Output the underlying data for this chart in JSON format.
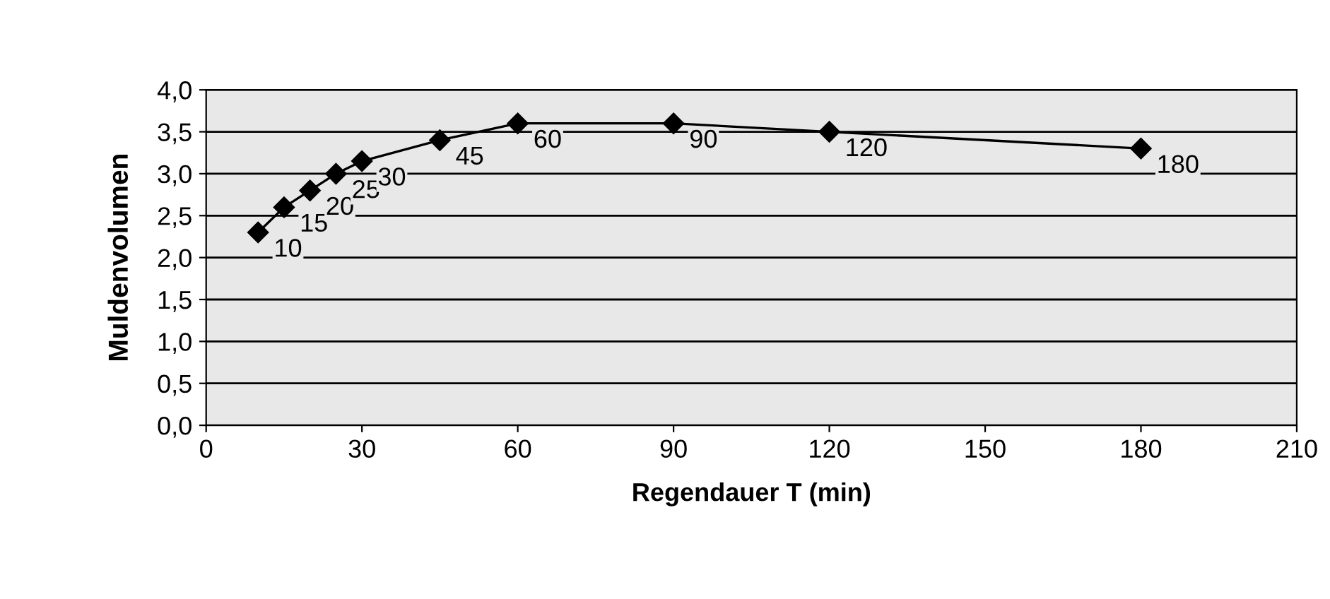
{
  "chart_data": {
    "type": "line",
    "xlabel": "Regendauer T (min)",
    "ylabel": "Muldenvolumen",
    "x": [
      10,
      15,
      20,
      25,
      30,
      45,
      60,
      90,
      120,
      180
    ],
    "series": [
      {
        "color": "#000000",
        "values": [
          2.3,
          2.6,
          2.8,
          3.0,
          3.15,
          3.4,
          3.6,
          3.6,
          3.5,
          3.3
        ]
      }
    ],
    "annotations": [
      {
        "text": "10",
        "x": 10,
        "y": 2.3
      },
      {
        "text": "15",
        "x": 15,
        "y": 2.6
      },
      {
        "text": "20",
        "x": 20,
        "y": 2.8
      },
      {
        "text": "25",
        "x": 25,
        "y": 3.0
      },
      {
        "text": "30",
        "x": 30,
        "y": 3.15
      },
      {
        "text": "45",
        "x": 45,
        "y": 3.4
      },
      {
        "text": "60",
        "x": 60,
        "y": 3.6
      },
      {
        "text": "90",
        "x": 90,
        "y": 3.6
      },
      {
        "text": "120",
        "x": 120,
        "y": 3.5
      },
      {
        "text": "180",
        "x": 180,
        "y": 3.3
      }
    ],
    "xlim": [
      0,
      210
    ],
    "xticks": [
      0,
      30,
      60,
      90,
      120,
      150,
      180,
      210
    ],
    "ylim": [
      0,
      4
    ],
    "yticks": [
      {
        "value": 0,
        "label": "0,0"
      },
      {
        "value": 0.5,
        "label": "0,5"
      },
      {
        "value": 1,
        "label": "1,0"
      },
      {
        "value": 1.5,
        "label": "1,5"
      },
      {
        "value": 2,
        "label": "2,0"
      },
      {
        "value": 2.5,
        "label": "2,5"
      },
      {
        "value": 3,
        "label": "3,0"
      },
      {
        "value": 3.5,
        "label": "3,5"
      },
      {
        "value": 4,
        "label": "4,0"
      }
    ],
    "grid": "y",
    "marker": "diamond",
    "line_style": "solid"
  }
}
